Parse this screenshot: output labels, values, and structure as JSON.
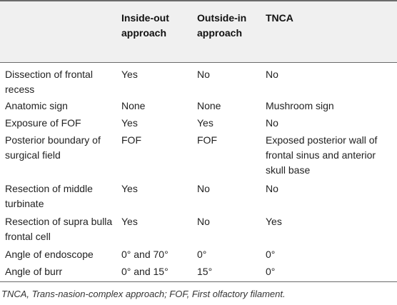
{
  "table": {
    "headers": [
      "",
      "Inside-out approach",
      "Outside-in approach",
      "TNCA"
    ],
    "rows": [
      [
        "Dissection of frontal recess",
        "Yes",
        "No",
        "No"
      ],
      [
        "Anatomic sign",
        "None",
        "None",
        "Mushroom sign"
      ],
      [
        "Exposure of FOF",
        "Yes",
        "Yes",
        "No"
      ],
      [
        "Posterior boundary of surgical field",
        "FOF",
        "FOF",
        "Exposed posterior wall of frontal sinus and anterior skull base"
      ],
      [
        "Resection of middle turbinate",
        "Yes",
        "No",
        "No"
      ],
      [
        "Resection of supra bulla frontal cell",
        "Yes",
        "No",
        "Yes"
      ],
      [
        "Angle of endoscope",
        "0° and 70°",
        "0°",
        "0°"
      ],
      [
        "Angle of burr",
        "0° and 15°",
        "15°",
        "0°"
      ]
    ]
  },
  "footnote": "TNCA, Trans-nasion-complex approach; FOF, First olfactory filament."
}
